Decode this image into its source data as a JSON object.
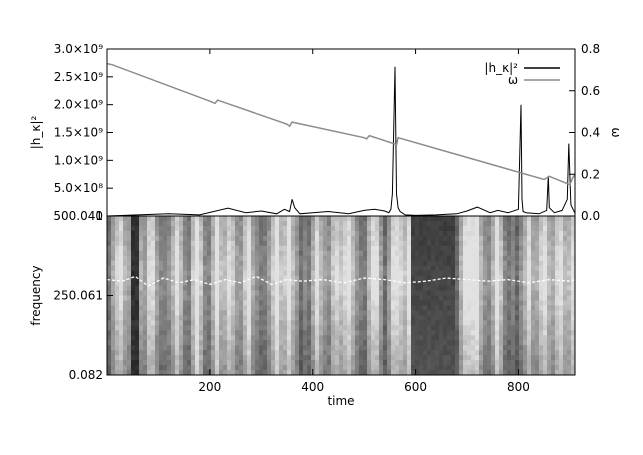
{
  "chart_data": [
    {
      "type": "line",
      "panel": "top",
      "ylabel_left": "|h_κ|²",
      "ylabel_right": "ω",
      "xlim": [
        0,
        910
      ],
      "ylim_left": [
        0,
        3000000000
      ],
      "ylim_right": [
        0,
        0.8
      ],
      "y_ticks_left": [
        "0",
        "5.0×10⁸",
        "1.0×10⁹",
        "1.5×10⁹",
        "2.0×10⁹",
        "2.5×10⁹",
        "3.0×10⁹"
      ],
      "y_tick_values_left": [
        0,
        500000000,
        1000000000,
        1500000000,
        2000000000,
        2500000000,
        3000000000
      ],
      "y_ticks_right": [
        "0.0",
        "0.2",
        "0.4",
        "0.6",
        "0.8"
      ],
      "y_tick_values_right": [
        0,
        0.2,
        0.4,
        0.6,
        0.8
      ],
      "legend_position": "top-right",
      "series": [
        {
          "name": "|h_κ|²",
          "color": "#000000",
          "axis": "left",
          "x": [
            0,
            60,
            120,
            180,
            235,
            270,
            300,
            330,
            345,
            355,
            360,
            365,
            375,
            400,
            430,
            470,
            500,
            520,
            540,
            548,
            552,
            555,
            560,
            563,
            566,
            570,
            580,
            600,
            640,
            680,
            700,
            720,
            745,
            760,
            780,
            800,
            805,
            807,
            809,
            815,
            840,
            855,
            858,
            860,
            870,
            885,
            895,
            898,
            902,
            910
          ],
          "y": [
            0,
            20000000,
            40000000,
            20000000,
            140000000,
            60000000,
            90000000,
            40000000,
            120000000,
            80000000,
            300000000,
            150000000,
            40000000,
            60000000,
            80000000,
            40000000,
            100000000,
            120000000,
            90000000,
            60000000,
            120000000,
            400000000,
            2680000000,
            400000000,
            150000000,
            80000000,
            20000000,
            10000000,
            20000000,
            40000000,
            90000000,
            160000000,
            60000000,
            100000000,
            60000000,
            120000000,
            2000000000,
            300000000,
            80000000,
            60000000,
            40000000,
            100000000,
            720000000,
            150000000,
            60000000,
            100000000,
            300000000,
            1300000000,
            200000000,
            50000000
          ]
        },
        {
          "name": "ω",
          "color": "#8c8c8c",
          "axis": "right",
          "x": [
            0,
            10,
            200,
            210,
            215,
            350,
            355,
            360,
            500,
            505,
            510,
            560,
            563,
            566,
            850,
            860,
            890,
            900,
            905,
            910
          ],
          "y": [
            0.73,
            0.725,
            0.55,
            0.54,
            0.555,
            0.44,
            0.43,
            0.45,
            0.375,
            0.37,
            0.385,
            0.345,
            0.34,
            0.375,
            0.175,
            0.19,
            0.16,
            0.15,
            0.18,
            0.2
          ]
        }
      ]
    },
    {
      "type": "heatmap",
      "panel": "bottom",
      "xlabel": "time",
      "ylabel": "frequency",
      "xlim": [
        0,
        910
      ],
      "ylim": [
        0.082,
        500.041
      ],
      "x_ticks": [
        "200",
        "400",
        "600",
        "800"
      ],
      "x_tick_values": [
        200,
        400,
        600,
        800
      ],
      "y_ticks": [
        "0.082",
        "250.061",
        "500.041"
      ],
      "y_tick_values": [
        0.082,
        250.061,
        500.041
      ],
      "colormap": "grayscale",
      "ridge": {
        "color": "#ffffff",
        "x": [
          0,
          30,
          55,
          80,
          110,
          140,
          170,
          200,
          230,
          260,
          290,
          320,
          350,
          380,
          420,
          460,
          500,
          540,
          580,
          620,
          660,
          700,
          740,
          780,
          820,
          860,
          900,
          910
        ],
        "y": [
          300,
          295,
          310,
          280,
          305,
          290,
          300,
          285,
          300,
          290,
          310,
          285,
          300,
          295,
          300,
          290,
          305,
          300,
          290,
          295,
          305,
          300,
          295,
          300,
          290,
          300,
          295,
          300
        ]
      }
    }
  ]
}
